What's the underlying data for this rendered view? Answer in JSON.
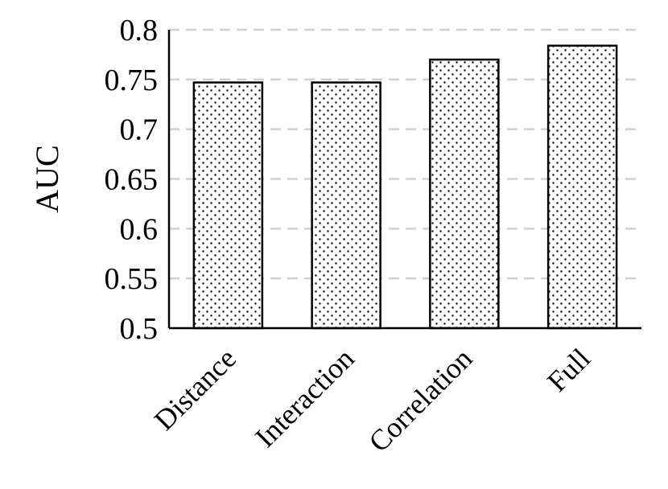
{
  "chart_data": {
    "type": "bar",
    "categories": [
      "Distance",
      "Interaction",
      "Correlation",
      "Full"
    ],
    "values": [
      0.747,
      0.747,
      0.77,
      0.784
    ],
    "ylabel": "AUC",
    "xlabel": "",
    "ylim": [
      0.5,
      0.8
    ],
    "yticks": [
      "0.5",
      "0.55",
      "0.6",
      "0.65",
      "0.7",
      "0.75",
      "0.8"
    ],
    "grid": "horizontal dashed",
    "bar_fill": "dotted pattern",
    "colors": {
      "bar_stroke": "#000000",
      "dots": "#000000",
      "grid": "#d0d0d0",
      "axis": "#000000"
    }
  }
}
